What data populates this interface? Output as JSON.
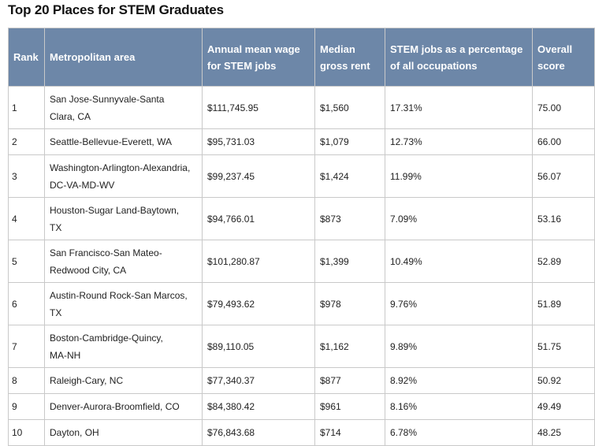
{
  "title": "Top 20 Places for STEM Graduates",
  "table": {
    "headers": [
      "Rank",
      "Metropolitan area",
      "Annual mean wage for STEM jobs",
      "Median gross rent",
      "STEM jobs as a percentage of all occupations",
      "Overall score"
    ],
    "rows": [
      {
        "rank": "1",
        "area_line1": "San Jose-Sunnyvale-Santa",
        "area_line2": "Clara, CA",
        "wage": "$111,745.95",
        "rent": "$1,560",
        "pct": "17.31%",
        "score": "75.00"
      },
      {
        "rank": "2",
        "area_line1": "Seattle-Bellevue-Everett, WA",
        "area_line2": "",
        "wage": "$95,731.03",
        "rent": "$1,079",
        "pct": "12.73%",
        "score": "66.00"
      },
      {
        "rank": "3",
        "area_line1": "Washington-Arlington-Alexandria,",
        "area_line2": "DC-VA-MD-WV",
        "wage": "$99,237.45",
        "rent": "$1,424",
        "pct": "11.99%",
        "score": "56.07"
      },
      {
        "rank": "4",
        "area_line1": "Houston-Sugar Land-Baytown,",
        "area_line2": "TX",
        "wage": "$94,766.01",
        "rent": "$873",
        "pct": "7.09%",
        "score": "53.16"
      },
      {
        "rank": "5",
        "area_line1": "San Francisco-San Mateo-",
        "area_line2": "Redwood City, CA",
        "wage": "$101,280.87",
        "rent": "$1,399",
        "pct": "10.49%",
        "score": "52.89"
      },
      {
        "rank": "6",
        "area_line1": "Austin-Round Rock-San Marcos,",
        "area_line2": "TX",
        "wage": "$79,493.62",
        "rent": "$978",
        "pct": "9.76%",
        "score": "51.89"
      },
      {
        "rank": "7",
        "area_line1": "Boston-Cambridge-Quincy,",
        "area_line2": "MA-NH",
        "wage": "$89,110.05",
        "rent": "$1,162",
        "pct": "9.89%",
        "score": "51.75"
      },
      {
        "rank": "8",
        "area_line1": "Raleigh-Cary, NC",
        "area_line2": "",
        "wage": "$77,340.37",
        "rent": "$877",
        "pct": "8.92%",
        "score": "50.92"
      },
      {
        "rank": "9",
        "area_line1": "Denver-Aurora-Broomfield, CO",
        "area_line2": "",
        "wage": "$84,380.42",
        "rent": "$961",
        "pct": "8.16%",
        "score": "49.49"
      },
      {
        "rank": "10",
        "area_line1": "Dayton, OH",
        "area_line2": "",
        "wage": "$76,843.68",
        "rent": "$714",
        "pct": "6.78%",
        "score": "48.25"
      }
    ]
  }
}
